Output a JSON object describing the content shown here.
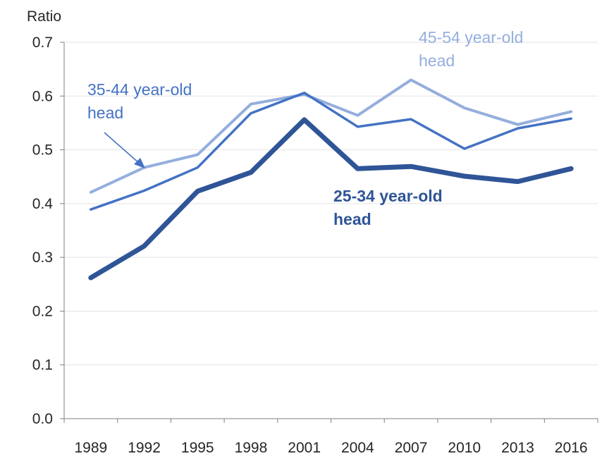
{
  "chart_data": {
    "type": "line",
    "title": "",
    "xlabel": "",
    "ylabel": "Ratio",
    "ylim": [
      0,
      0.7
    ],
    "yticks": [
      "0.0",
      "0.1",
      "0.2",
      "0.3",
      "0.4",
      "0.5",
      "0.6",
      "0.7"
    ],
    "x": [
      "1989",
      "1992",
      "1995",
      "1998",
      "2001",
      "2004",
      "2007",
      "2010",
      "2013",
      "2016"
    ],
    "grid": true,
    "legend": "inline-labels",
    "series": [
      {
        "name": "45-54 year-old head",
        "label_lines": [
          "45-54 year-old",
          "head"
        ],
        "color": "#94aedd",
        "values": [
          0.421,
          0.467,
          0.491,
          0.585,
          0.603,
          0.564,
          0.63,
          0.578,
          0.547,
          0.571
        ]
      },
      {
        "name": "35-44 year-old head",
        "label_lines": [
          "35-44 year-old",
          "head"
        ],
        "color": "#4472c4",
        "values": [
          0.389,
          0.424,
          0.467,
          0.568,
          0.606,
          0.543,
          0.557,
          0.502,
          0.54,
          0.558
        ]
      },
      {
        "name": "25-34 year-old head",
        "label_lines": [
          "25-34 year-old",
          "head"
        ],
        "color": "#2f5597",
        "values": [
          0.262,
          0.321,
          0.423,
          0.458,
          0.556,
          0.465,
          0.469,
          0.451,
          0.441,
          0.465
        ]
      }
    ]
  }
}
